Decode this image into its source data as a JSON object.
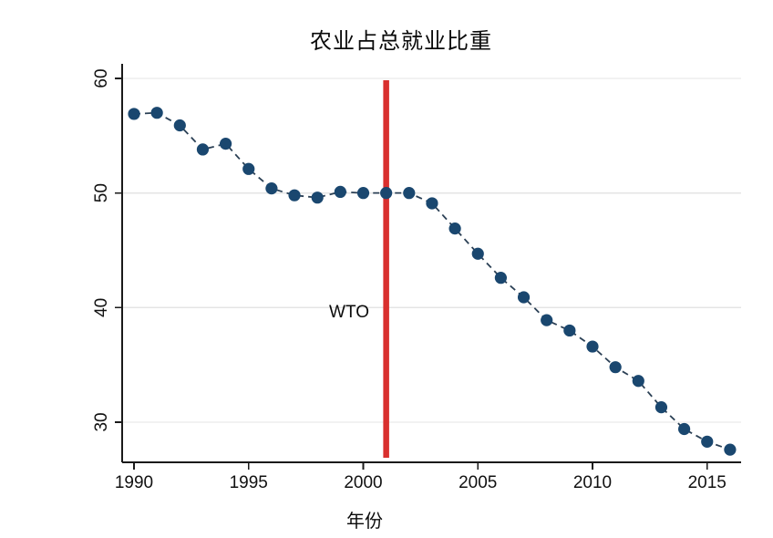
{
  "page": {
    "background": "#ffffff"
  },
  "chart_data": {
    "type": "line",
    "title": "农业占总就业比重",
    "xlabel": "年份",
    "ylabel": "",
    "legend": "none",
    "grid": "horizontal",
    "xticks": [
      1990,
      1995,
      2000,
      2005,
      2010,
      2015
    ],
    "yticks": [
      30,
      40,
      50,
      60
    ],
    "xlim": [
      1989.5,
      2016.5
    ],
    "ylim": [
      26.5,
      61.3
    ],
    "series": [
      {
        "name": "农业占总就业比重",
        "style": "dashed-line-with-circle-markers",
        "x": [
          1990,
          1991,
          1992,
          1993,
          1994,
          1995,
          1996,
          1997,
          1998,
          1999,
          2000,
          2001,
          2002,
          2003,
          2004,
          2005,
          2006,
          2007,
          2008,
          2009,
          2010,
          2011,
          2012,
          2013,
          2014,
          2015,
          2016
        ],
        "values": [
          56.9,
          57.0,
          55.9,
          53.8,
          54.3,
          52.1,
          50.4,
          49.8,
          49.6,
          50.1,
          50.0,
          50.0,
          50.0,
          49.1,
          46.9,
          44.7,
          42.6,
          40.9,
          38.9,
          38.0,
          36.6,
          34.8,
          33.6,
          31.3,
          29.4,
          28.3,
          27.6
        ]
      }
    ],
    "vline": {
      "x": 2001,
      "label": "WTO",
      "color": "#d9302e"
    },
    "colors": {
      "marker": "#1a476f",
      "line": "#2b4055",
      "grid": "#e4e4e4",
      "axis": "#1a1a1a",
      "text": "#111111"
    }
  }
}
